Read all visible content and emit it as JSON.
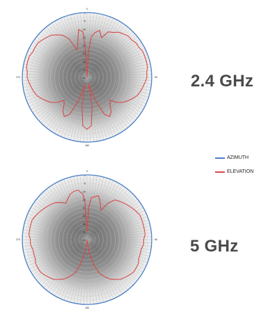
{
  "legend": {
    "azimuth_label": "AZIMUTH",
    "elevation_label": "ELEVATION"
  },
  "colors": {
    "azimuth": "#4a7fc6",
    "elevation": "#d64a4a",
    "grid": "#9a9a9a"
  },
  "chart_data": [
    {
      "type": "polar-line",
      "title": "2.4 GHz",
      "angle_labels": [
        "0",
        "90",
        "180",
        "270"
      ],
      "radial_range": [
        -40,
        0
      ],
      "radial_tick_labels": [
        "0",
        "-5",
        "-10",
        "-15",
        "-20",
        "-25",
        "-30",
        "-35",
        "-40"
      ],
      "grid": true,
      "legend": "right",
      "series": [
        {
          "name": "AZIMUTH",
          "angles": [
            0,
            30,
            60,
            90,
            120,
            150,
            180,
            210,
            240,
            270,
            300,
            330
          ],
          "values": [
            0,
            0,
            0,
            0,
            0,
            0,
            0,
            0,
            0,
            0,
            0,
            0
          ]
        },
        {
          "name": "ELEVATION",
          "angles": [
            0,
            3,
            6,
            10,
            15,
            20,
            25,
            30,
            35,
            40,
            45,
            50,
            55,
            60,
            65,
            70,
            75,
            80,
            85,
            90,
            95,
            100,
            105,
            110,
            115,
            120,
            125,
            130,
            135,
            140,
            145,
            150,
            155,
            160,
            165,
            170,
            175,
            180,
            185,
            190,
            195,
            200,
            205,
            210,
            215,
            220,
            225,
            230,
            235,
            240,
            245,
            250,
            255,
            260,
            265,
            270,
            275,
            280,
            285,
            290,
            295,
            300,
            305,
            310,
            315,
            320,
            325,
            330,
            335,
            340,
            345,
            350,
            355,
            357
          ],
          "values": [
            -40,
            -25,
            -15,
            -12,
            -10,
            -14,
            -9,
            -8,
            -6,
            -5,
            -4,
            -4,
            -3,
            -3,
            -2,
            -2,
            -2,
            -2,
            -3,
            -3,
            -4,
            -5,
            -6,
            -7,
            -9,
            -11,
            -13,
            -16,
            -20,
            -18,
            -14,
            -12,
            -15,
            -25,
            -36,
            -22,
            -10,
            -8,
            -10,
            -22,
            -36,
            -25,
            -15,
            -12,
            -14,
            -18,
            -20,
            -16,
            -13,
            -11,
            -9,
            -7,
            -6,
            -5,
            -4,
            -3,
            -3,
            -2,
            -2,
            -2,
            -3,
            -3,
            -3,
            -4,
            -5,
            -6,
            -8,
            -10,
            -14,
            -22,
            -18,
            -10,
            -12,
            -25
          ]
        }
      ]
    },
    {
      "type": "polar-line",
      "title": "5 GHz",
      "angle_labels": [
        "0",
        "90",
        "180",
        "270"
      ],
      "radial_range": [
        -40,
        0
      ],
      "radial_tick_labels": [
        "0",
        "-5",
        "-10",
        "-15",
        "-20",
        "-25",
        "-30",
        "-35",
        "-40"
      ],
      "grid": true,
      "legend": "right",
      "series": [
        {
          "name": "AZIMUTH",
          "angles": [
            0,
            30,
            60,
            90,
            120,
            150,
            180,
            210,
            240,
            270,
            300,
            330
          ],
          "values": [
            0,
            0,
            0,
            0,
            0,
            0,
            0,
            0,
            0,
            0,
            0,
            0
          ]
        },
        {
          "name": "ELEVATION",
          "angles": [
            0,
            3,
            6,
            10,
            15,
            20,
            25,
            30,
            35,
            40,
            45,
            50,
            55,
            60,
            65,
            70,
            75,
            80,
            85,
            90,
            95,
            100,
            105,
            110,
            115,
            120,
            125,
            130,
            135,
            140,
            145,
            150,
            155,
            160,
            165,
            170,
            175,
            180,
            185,
            190,
            195,
            200,
            205,
            210,
            215,
            220,
            225,
            230,
            235,
            240,
            245,
            250,
            255,
            260,
            265,
            270,
            275,
            280,
            285,
            290,
            295,
            300,
            305,
            310,
            315,
            320,
            325,
            330,
            335,
            340,
            345,
            350,
            355,
            357
          ],
          "values": [
            -35,
            -20,
            -14,
            -13,
            -12,
            -16,
            -20,
            -14,
            -10,
            -9,
            -8,
            -7,
            -6,
            -5,
            -4,
            -4,
            -4,
            -4,
            -4,
            -5,
            -5,
            -6,
            -6,
            -6,
            -5,
            -5,
            -5,
            -6,
            -7,
            -8,
            -10,
            -12,
            -15,
            -18,
            -24,
            -32,
            -38,
            -40,
            -38,
            -32,
            -24,
            -18,
            -15,
            -12,
            -10,
            -8,
            -7,
            -6,
            -5,
            -5,
            -5,
            -6,
            -6,
            -6,
            -5,
            -5,
            -4,
            -4,
            -4,
            -4,
            -5,
            -6,
            -7,
            -8,
            -9,
            -10,
            -12,
            -14,
            -12,
            -10,
            -9,
            -9,
            -12,
            -18
          ]
        }
      ]
    }
  ]
}
